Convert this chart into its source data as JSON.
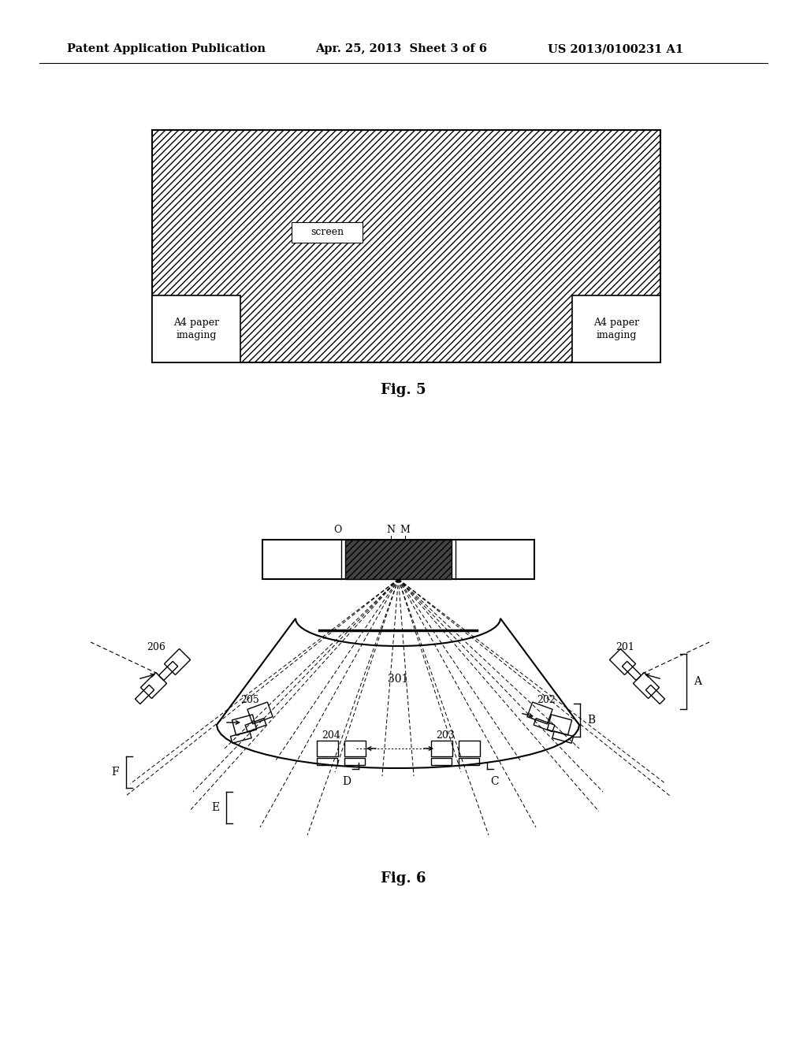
{
  "header_left": "Patent Application Publication",
  "header_mid": "Apr. 25, 2013  Sheet 3 of 6",
  "header_right": "US 2013/0100231 A1",
  "fig5_label": "Fig. 5",
  "fig6_label": "Fig. 6",
  "screen_label": "screen",
  "a4_left": "A4 paper\nimaging",
  "a4_right": "A4 paper\nimaging",
  "label_301": "301",
  "label_201": "201",
  "label_202": "202",
  "label_203": "203",
  "label_204": "204",
  "label_205": "205",
  "label_206": "206",
  "label_O": "O",
  "label_N": "N",
  "label_M": "M",
  "label_A": "A",
  "label_B": "B",
  "label_C": "C",
  "label_D": "D",
  "label_E": "E",
  "label_F": "F",
  "bg_color": "#ffffff",
  "line_color": "#000000"
}
